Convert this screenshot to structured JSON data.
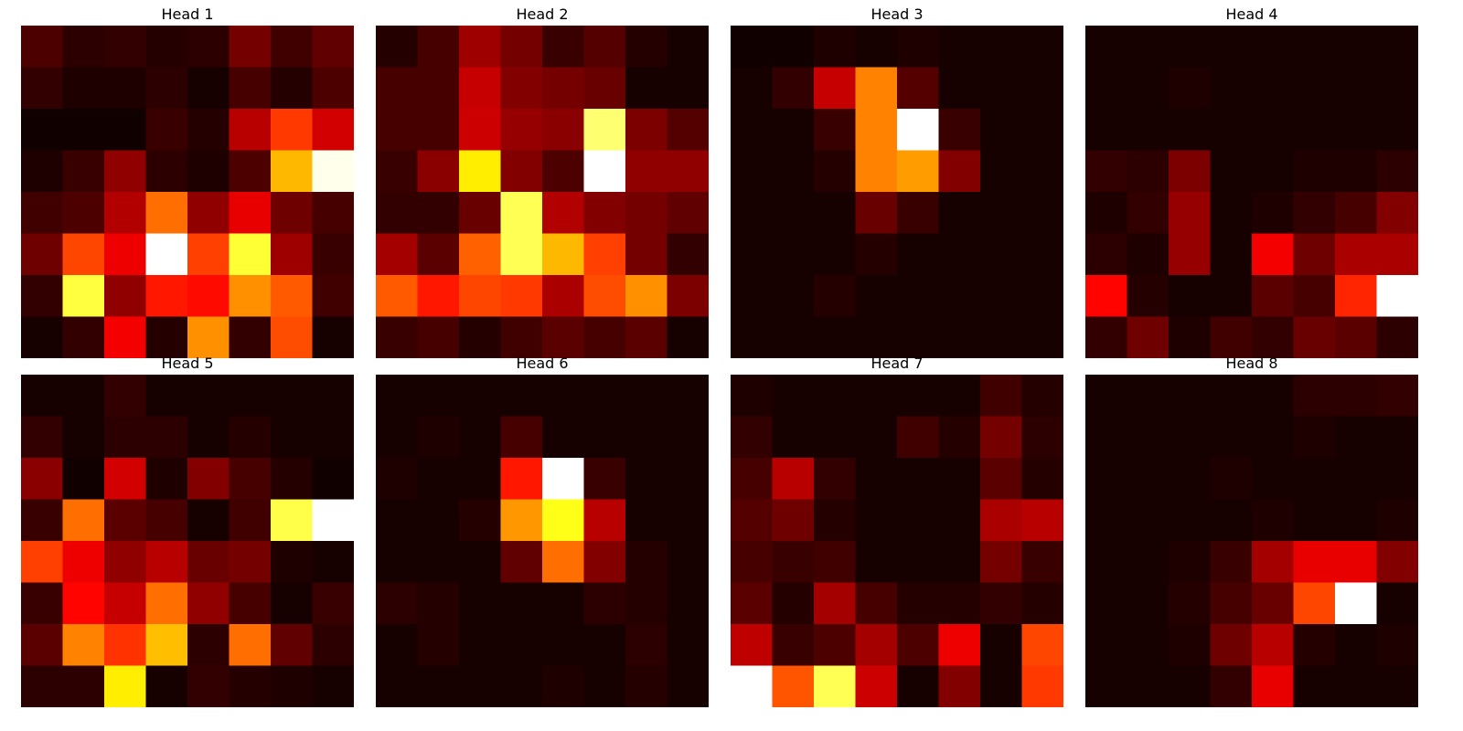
{
  "chart_data": [
    {
      "type": "heatmap",
      "title": "Head 1",
      "colormap": "hot",
      "grid": false,
      "axes_visible": false,
      "vmin": 0,
      "vmax": 1,
      "values": [
        [
          0.1,
          0.05,
          0.06,
          0.04,
          0.05,
          0.16,
          0.08,
          0.13
        ],
        [
          0.06,
          0.03,
          0.03,
          0.05,
          0.02,
          0.09,
          0.04,
          0.1
        ],
        [
          0.01,
          0.01,
          0.01,
          0.07,
          0.04,
          0.26,
          0.45,
          0.3
        ],
        [
          0.03,
          0.07,
          0.2,
          0.05,
          0.03,
          0.1,
          0.64,
          0.98
        ],
        [
          0.08,
          0.1,
          0.25,
          0.53,
          0.2,
          0.33,
          0.15,
          0.09
        ],
        [
          0.15,
          0.47,
          0.34,
          1.0,
          0.46,
          0.8,
          0.22,
          0.07
        ],
        [
          0.06,
          0.81,
          0.2,
          0.4,
          0.38,
          0.58,
          0.5,
          0.08
        ],
        [
          0.02,
          0.06,
          0.35,
          0.04,
          0.58,
          0.06,
          0.48,
          0.02
        ]
      ]
    },
    {
      "type": "heatmap",
      "title": "Head 2",
      "colormap": "hot",
      "grid": false,
      "axes_visible": false,
      "vmin": 0,
      "vmax": 1,
      "values": [
        [
          0.04,
          0.09,
          0.22,
          0.16,
          0.07,
          0.11,
          0.04,
          0.02
        ],
        [
          0.09,
          0.09,
          0.28,
          0.18,
          0.16,
          0.14,
          0.02,
          0.02
        ],
        [
          0.09,
          0.09,
          0.29,
          0.21,
          0.19,
          0.86,
          0.17,
          0.11
        ],
        [
          0.07,
          0.19,
          0.72,
          0.18,
          0.1,
          1.0,
          0.2,
          0.2
        ],
        [
          0.06,
          0.06,
          0.14,
          0.83,
          0.25,
          0.18,
          0.16,
          0.13
        ],
        [
          0.23,
          0.12,
          0.51,
          0.83,
          0.64,
          0.46,
          0.16,
          0.06
        ],
        [
          0.5,
          0.4,
          0.47,
          0.45,
          0.24,
          0.48,
          0.58,
          0.17
        ],
        [
          0.07,
          0.09,
          0.04,
          0.08,
          0.12,
          0.09,
          0.12,
          0.02
        ]
      ]
    },
    {
      "type": "heatmap",
      "title": "Head 3",
      "colormap": "hot",
      "grid": false,
      "axes_visible": false,
      "vmin": 0,
      "vmax": 1,
      "values": [
        [
          0.01,
          0.01,
          0.03,
          0.02,
          0.03,
          0.02,
          0.02,
          0.02
        ],
        [
          0.02,
          0.06,
          0.28,
          0.56,
          0.11,
          0.02,
          0.02,
          0.02
        ],
        [
          0.02,
          0.02,
          0.07,
          0.56,
          1.0,
          0.07,
          0.02,
          0.02
        ],
        [
          0.02,
          0.02,
          0.04,
          0.56,
          0.6,
          0.18,
          0.02,
          0.02
        ],
        [
          0.02,
          0.02,
          0.02,
          0.14,
          0.07,
          0.02,
          0.02,
          0.02
        ],
        [
          0.02,
          0.02,
          0.02,
          0.04,
          0.02,
          0.02,
          0.02,
          0.02
        ],
        [
          0.02,
          0.02,
          0.04,
          0.02,
          0.02,
          0.02,
          0.02,
          0.02
        ],
        [
          0.02,
          0.02,
          0.02,
          0.02,
          0.02,
          0.02,
          0.02,
          0.02
        ]
      ]
    },
    {
      "type": "heatmap",
      "title": "Head 4",
      "colormap": "hot",
      "grid": false,
      "axes_visible": false,
      "vmin": 0,
      "vmax": 1,
      "values": [
        [
          0.02,
          0.02,
          0.02,
          0.02,
          0.02,
          0.02,
          0.02,
          0.02
        ],
        [
          0.02,
          0.02,
          0.03,
          0.02,
          0.02,
          0.02,
          0.02,
          0.02
        ],
        [
          0.02,
          0.02,
          0.02,
          0.02,
          0.02,
          0.02,
          0.02,
          0.02
        ],
        [
          0.06,
          0.05,
          0.17,
          0.02,
          0.02,
          0.03,
          0.03,
          0.05
        ],
        [
          0.03,
          0.06,
          0.21,
          0.02,
          0.03,
          0.06,
          0.09,
          0.18
        ],
        [
          0.05,
          0.03,
          0.21,
          0.02,
          0.35,
          0.15,
          0.24,
          0.24
        ],
        [
          0.37,
          0.04,
          0.02,
          0.02,
          0.12,
          0.09,
          0.42,
          1.0
        ],
        [
          0.06,
          0.15,
          0.03,
          0.08,
          0.06,
          0.14,
          0.12,
          0.05
        ]
      ]
    },
    {
      "type": "heatmap",
      "title": "Head 5",
      "colormap": "hot",
      "grid": false,
      "axes_visible": false,
      "vmin": 0,
      "vmax": 1,
      "values": [
        [
          0.02,
          0.02,
          0.06,
          0.02,
          0.02,
          0.02,
          0.02,
          0.02
        ],
        [
          0.06,
          0.02,
          0.05,
          0.05,
          0.02,
          0.04,
          0.02,
          0.02
        ],
        [
          0.19,
          0.01,
          0.3,
          0.03,
          0.18,
          0.09,
          0.04,
          0.01
        ],
        [
          0.07,
          0.53,
          0.12,
          0.09,
          0.02,
          0.08,
          0.82,
          1.0
        ],
        [
          0.46,
          0.34,
          0.2,
          0.26,
          0.14,
          0.16,
          0.03,
          0.02
        ],
        [
          0.07,
          0.37,
          0.28,
          0.53,
          0.2,
          0.09,
          0.02,
          0.07
        ],
        [
          0.12,
          0.56,
          0.44,
          0.65,
          0.05,
          0.53,
          0.13,
          0.05
        ],
        [
          0.05,
          0.05,
          0.72,
          0.02,
          0.06,
          0.04,
          0.03,
          0.02
        ]
      ]
    },
    {
      "type": "heatmap",
      "title": "Head 6",
      "colormap": "hot",
      "grid": false,
      "axes_visible": false,
      "vmin": 0,
      "vmax": 1,
      "values": [
        [
          0.02,
          0.02,
          0.02,
          0.02,
          0.02,
          0.02,
          0.02,
          0.02
        ],
        [
          0.02,
          0.03,
          0.02,
          0.09,
          0.02,
          0.02,
          0.02,
          0.02
        ],
        [
          0.03,
          0.02,
          0.02,
          0.4,
          1.0,
          0.07,
          0.02,
          0.02
        ],
        [
          0.02,
          0.02,
          0.04,
          0.59,
          0.77,
          0.26,
          0.02,
          0.02
        ],
        [
          0.02,
          0.02,
          0.02,
          0.13,
          0.53,
          0.18,
          0.04,
          0.02
        ],
        [
          0.05,
          0.04,
          0.02,
          0.02,
          0.02,
          0.05,
          0.04,
          0.02
        ],
        [
          0.02,
          0.04,
          0.02,
          0.02,
          0.02,
          0.02,
          0.05,
          0.02
        ],
        [
          0.02,
          0.02,
          0.02,
          0.02,
          0.03,
          0.02,
          0.04,
          0.02
        ]
      ]
    },
    {
      "type": "heatmap",
      "title": "Head 7",
      "colormap": "hot",
      "grid": false,
      "axes_visible": false,
      "vmin": 0,
      "vmax": 1,
      "values": [
        [
          0.03,
          0.02,
          0.02,
          0.02,
          0.02,
          0.02,
          0.08,
          0.04
        ],
        [
          0.06,
          0.02,
          0.02,
          0.02,
          0.08,
          0.04,
          0.16,
          0.05
        ],
        [
          0.09,
          0.26,
          0.06,
          0.02,
          0.02,
          0.02,
          0.12,
          0.04
        ],
        [
          0.11,
          0.15,
          0.04,
          0.02,
          0.02,
          0.02,
          0.24,
          0.26
        ],
        [
          0.09,
          0.07,
          0.08,
          0.02,
          0.02,
          0.02,
          0.16,
          0.07
        ],
        [
          0.12,
          0.04,
          0.23,
          0.09,
          0.04,
          0.04,
          0.06,
          0.04
        ],
        [
          0.27,
          0.07,
          0.1,
          0.23,
          0.1,
          0.34,
          0.02,
          0.47
        ],
        [
          1.0,
          0.49,
          0.83,
          0.29,
          0.02,
          0.18,
          0.02,
          0.45
        ]
      ]
    },
    {
      "type": "heatmap",
      "title": "Head 8",
      "colormap": "hot",
      "grid": false,
      "axes_visible": false,
      "vmin": 0,
      "vmax": 1,
      "values": [
        [
          0.02,
          0.02,
          0.02,
          0.02,
          0.02,
          0.05,
          0.05,
          0.06
        ],
        [
          0.02,
          0.02,
          0.02,
          0.02,
          0.02,
          0.03,
          0.02,
          0.02
        ],
        [
          0.02,
          0.02,
          0.02,
          0.03,
          0.02,
          0.02,
          0.02,
          0.02
        ],
        [
          0.02,
          0.02,
          0.02,
          0.02,
          0.03,
          0.02,
          0.02,
          0.03
        ],
        [
          0.02,
          0.02,
          0.03,
          0.07,
          0.23,
          0.33,
          0.33,
          0.18
        ],
        [
          0.02,
          0.02,
          0.04,
          0.09,
          0.14,
          0.47,
          1.0,
          0.02
        ],
        [
          0.02,
          0.02,
          0.03,
          0.15,
          0.26,
          0.04,
          0.02,
          0.03
        ],
        [
          0.02,
          0.02,
          0.02,
          0.06,
          0.33,
          0.02,
          0.02,
          0.02
        ]
      ]
    }
  ]
}
